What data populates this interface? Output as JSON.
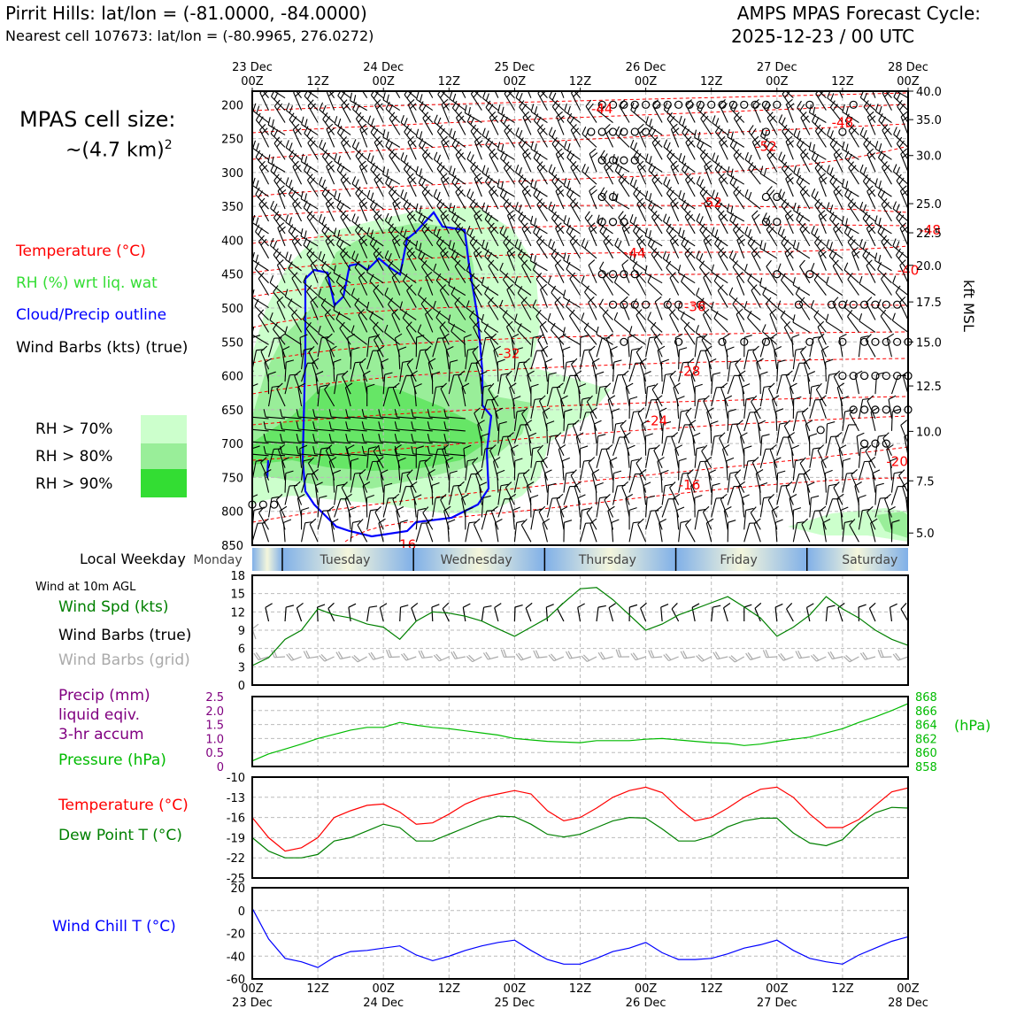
{
  "header": {
    "site_line": "Pirrit Hills: lat/lon = (-81.0000, -84.0000)",
    "cell_line": "Nearest cell 107673: lat/lon = (-80.9965, 276.0272)",
    "product_title": "AMPS MPAS Forecast Cycle:",
    "cycle": "2025-12-23 / 00 UTC"
  },
  "cell_size": {
    "label": "MPAS cell size:",
    "value": "~(4.7 km)",
    "exponent": "2"
  },
  "legend": {
    "temperature": "Temperature (°C)",
    "rh": "RH (%) wrt liq. wat",
    "cloud": "Cloud/Precip outline",
    "barbs": "Wind Barbs (kts) (true)",
    "rh_levels": [
      "RH > 70%",
      "RH > 80%",
      "RH > 90%"
    ]
  },
  "colors": {
    "temperature": "#ff0000",
    "rh_label": "#33dd33",
    "cloud": "#0000ff",
    "rh70": "#ccffcc",
    "rh80": "#99ee99",
    "rh90": "#33dd33",
    "wind_speed": "#008000",
    "precip": "#800080",
    "pressure": "#00bb00",
    "dewpoint": "#008000",
    "windchill": "#0000ff",
    "grid_barb": "#aaaaaa"
  },
  "time_axis": {
    "top_labels": [
      {
        "h": 0,
        "l1": "23 Dec",
        "l2": "00Z"
      },
      {
        "h": 12,
        "l1": "",
        "l2": "12Z"
      },
      {
        "h": 24,
        "l1": "24 Dec",
        "l2": "00Z"
      },
      {
        "h": 36,
        "l1": "",
        "l2": "12Z"
      },
      {
        "h": 48,
        "l1": "25 Dec",
        "l2": "00Z"
      },
      {
        "h": 60,
        "l1": "",
        "l2": "12Z"
      },
      {
        "h": 72,
        "l1": "26 Dec",
        "l2": "00Z"
      },
      {
        "h": 84,
        "l1": "",
        "l2": "12Z"
      },
      {
        "h": 96,
        "l1": "27 Dec",
        "l2": "00Z"
      },
      {
        "h": 108,
        "l1": "",
        "l2": "12Z"
      },
      {
        "h": 120,
        "l1": "28 Dec",
        "l2": "00Z"
      }
    ],
    "bottom_labels": [
      {
        "h": 0,
        "l1": "00Z",
        "l2": "23 Dec"
      },
      {
        "h": 12,
        "l1": "12Z",
        "l2": ""
      },
      {
        "h": 24,
        "l1": "00Z",
        "l2": "24 Dec"
      },
      {
        "h": 36,
        "l1": "12Z",
        "l2": ""
      },
      {
        "h": 48,
        "l1": "00Z",
        "l2": "25 Dec"
      },
      {
        "h": 60,
        "l1": "12Z",
        "l2": ""
      },
      {
        "h": 72,
        "l1": "00Z",
        "l2": "26 Dec"
      },
      {
        "h": 84,
        "l1": "12Z",
        "l2": ""
      },
      {
        "h": 96,
        "l1": "00Z",
        "l2": "27 Dec"
      },
      {
        "h": 108,
        "l1": "12Z",
        "l2": ""
      },
      {
        "h": 120,
        "l1": "00Z",
        "l2": "28 Dec"
      }
    ]
  },
  "weekday": {
    "label": "Local Weekday",
    "days": [
      {
        "name": "Monday",
        "center_h": 0
      },
      {
        "name": "Tuesday",
        "center_h": 17
      },
      {
        "name": "Wednesday",
        "center_h": 41
      },
      {
        "name": "Thursday",
        "center_h": 65
      },
      {
        "name": "Friday",
        "center_h": 89
      },
      {
        "name": "Saturday",
        "center_h": 113
      }
    ],
    "boundaries_h": [
      5.5,
      29.5,
      53.5,
      77.5,
      101.5
    ]
  },
  "chart_data": [
    {
      "type": "time-height cross section",
      "name": "profile",
      "y_axis": "pressure (hPa)",
      "ylim": [
        850,
        180
      ],
      "pressure_ticks": [
        "200",
        "250",
        "300",
        "350",
        "400",
        "450",
        "500",
        "550",
        "600",
        "650",
        "700",
        "750",
        "800",
        "850"
      ],
      "height_ticks": [
        {
          "p": 180,
          "label": "40.0"
        },
        {
          "p": 222,
          "label": "35.0"
        },
        {
          "p": 275,
          "label": "30.0"
        },
        {
          "p": 346,
          "label": "25.0"
        },
        {
          "p": 389,
          "label": "22.5"
        },
        {
          "p": 437,
          "label": "20.0"
        },
        {
          "p": 491,
          "label": "17.5"
        },
        {
          "p": 550,
          "label": "15.0"
        },
        {
          "p": 615,
          "label": "12.5"
        },
        {
          "p": 682,
          "label": "10.0"
        },
        {
          "p": 755,
          "label": "7.5"
        },
        {
          "p": 832,
          "label": "5.0"
        }
      ],
      "right_axis_label": "kft MSL",
      "temp_contour_labels": [
        {
          "h": 64,
          "p": 205,
          "label": "-44"
        },
        {
          "h": 108,
          "p": 225,
          "label": "-48"
        },
        {
          "h": 94,
          "p": 260,
          "label": "-52"
        },
        {
          "h": 84,
          "p": 343,
          "label": "-52"
        },
        {
          "h": 124,
          "p": 384,
          "label": "-48"
        },
        {
          "h": 70,
          "p": 418,
          "label": "-44"
        },
        {
          "h": 120,
          "p": 443,
          "label": "-40"
        },
        {
          "h": 81,
          "p": 497,
          "label": "-36"
        },
        {
          "h": 47,
          "p": 566,
          "label": "-32"
        },
        {
          "h": 80,
          "p": 592,
          "label": "-28"
        },
        {
          "h": 74,
          "p": 665,
          "label": "-24"
        },
        {
          "h": 118,
          "p": 725,
          "label": "-20"
        },
        {
          "h": 80,
          "p": 760,
          "label": "-16"
        },
        {
          "h": 28,
          "p": 848,
          "label": "-16"
        }
      ]
    },
    {
      "type": "line",
      "name": "wind_speed",
      "title": "Wind Spd (kts)",
      "ylim": [
        0,
        18
      ],
      "yticks": [
        "0",
        "3",
        "6",
        "9",
        "12",
        "15",
        "18"
      ],
      "x_hours": [
        0,
        3,
        6,
        9,
        12,
        15,
        18,
        21,
        24,
        27,
        30,
        33,
        36,
        39,
        42,
        45,
        48,
        51,
        54,
        57,
        60,
        63,
        66,
        69,
        72,
        75,
        78,
        81,
        84,
        87,
        90,
        93,
        96,
        99,
        102,
        105,
        108,
        111,
        114,
        117,
        120
      ],
      "series": [
        {
          "name": "Wind Spd (kts)",
          "values": [
            3.2,
            4.5,
            7.5,
            9,
            12.5,
            11.5,
            11,
            10,
            9.5,
            7.5,
            10.5,
            12,
            11.8,
            11.3,
            10.5,
            9.2,
            8,
            9.5,
            11,
            13.5,
            15.8,
            16,
            14,
            11.5,
            9,
            10,
            11.5,
            12.5,
            13.5,
            14.5,
            12.8,
            11,
            8,
            9.5,
            11.5,
            14.5,
            12.5,
            11,
            9,
            7.5,
            6.5
          ]
        }
      ]
    },
    {
      "type": "line",
      "name": "pressure",
      "title": "Pressure (hPa)",
      "ylim": [
        858,
        868
      ],
      "yticks": [
        "858",
        "860",
        "862",
        "864",
        "866",
        "868"
      ],
      "precip_title": "Precip (mm) liquid eqiv. 3-hr accum",
      "precip_ylim": [
        0,
        2.5
      ],
      "precip_yticks": [
        "0",
        "0.5",
        "1.0",
        "1.5",
        "2.0",
        "2.5"
      ],
      "unit_label": "(hPa)",
      "x_hours": [
        0,
        3,
        6,
        9,
        12,
        15,
        18,
        21,
        24,
        27,
        30,
        33,
        36,
        39,
        42,
        45,
        48,
        51,
        54,
        57,
        60,
        63,
        66,
        69,
        72,
        75,
        78,
        81,
        84,
        87,
        90,
        93,
        96,
        99,
        102,
        105,
        108,
        111,
        114,
        117,
        120
      ],
      "series": [
        {
          "name": "Pressure (hPa)",
          "values": [
            858.8,
            859.8,
            860.5,
            861.2,
            862.0,
            862.6,
            863.2,
            863.6,
            863.6,
            864.3,
            863.9,
            863.6,
            863.4,
            863.1,
            862.8,
            862.5,
            862.0,
            861.8,
            861.6,
            861.5,
            861.4,
            861.7,
            861.7,
            861.7,
            861.9,
            862.0,
            861.8,
            861.6,
            861.4,
            861.3,
            861.0,
            861.2,
            861.6,
            861.9,
            862.2,
            862.8,
            863.4,
            864.3,
            865.1,
            866.0,
            867.0
          ]
        }
      ]
    },
    {
      "type": "line",
      "name": "temperature",
      "ylim": [
        -25,
        -10
      ],
      "yticks": [
        "-25",
        "-22",
        "-19",
        "-16",
        "-13",
        "-10"
      ],
      "x_hours": [
        0,
        3,
        6,
        9,
        12,
        15,
        18,
        21,
        24,
        27,
        30,
        33,
        36,
        39,
        42,
        45,
        48,
        51,
        54,
        57,
        60,
        63,
        66,
        69,
        72,
        75,
        78,
        81,
        84,
        87,
        90,
        93,
        96,
        99,
        102,
        105,
        108,
        111,
        114,
        117,
        120
      ],
      "series": [
        {
          "name": "Temperature (°C)",
          "values": [
            -16,
            -19,
            -21,
            -20.5,
            -19,
            -16,
            -15,
            -14.2,
            -14,
            -15.2,
            -17,
            -16.8,
            -15.5,
            -14,
            -13,
            -12.5,
            -12,
            -12.5,
            -15,
            -16.5,
            -16,
            -14.6,
            -13,
            -12,
            -11.5,
            -12.3,
            -14.6,
            -16.5,
            -16,
            -14.6,
            -13,
            -11.8,
            -11.5,
            -13,
            -15.5,
            -17.5,
            -17.5,
            -16.3,
            -14.2,
            -12.2,
            -11.6
          ]
        },
        {
          "name": "Dew Point T (°C)",
          "values": [
            -19,
            -21,
            -22,
            -22,
            -21.5,
            -19.5,
            -19,
            -18,
            -17,
            -17.5,
            -19.5,
            -19.5,
            -18.5,
            -17.5,
            -16.5,
            -15.8,
            -15.9,
            -17,
            -18.5,
            -18.9,
            -18.5,
            -17.5,
            -16.5,
            -16,
            -16.1,
            -17.7,
            -19.5,
            -19.5,
            -18.8,
            -17.4,
            -16.5,
            -16.1,
            -16.1,
            -18.3,
            -19.8,
            -20.2,
            -19.3,
            -16.9,
            -15.3,
            -14.5,
            -14.6
          ]
        }
      ]
    },
    {
      "type": "line",
      "name": "wind_chill",
      "title": "Wind Chill T (°C)",
      "ylim": [
        -60,
        20
      ],
      "yticks": [
        "-60",
        "-40",
        "-20",
        "0",
        "20"
      ],
      "x_hours": [
        0,
        3,
        6,
        9,
        12,
        15,
        18,
        21,
        24,
        27,
        30,
        33,
        36,
        39,
        42,
        45,
        48,
        51,
        54,
        57,
        60,
        63,
        66,
        69,
        72,
        75,
        78,
        81,
        84,
        87,
        90,
        93,
        96,
        99,
        102,
        105,
        108,
        111,
        114,
        117,
        120
      ],
      "series": [
        {
          "name": "Wind Chill T (°C)",
          "values": [
            2,
            -25,
            -42,
            -45,
            -50,
            -41,
            -36,
            -35,
            -33,
            -31,
            -39,
            -44,
            -40,
            -35,
            -31,
            -28,
            -26,
            -35,
            -43,
            -47,
            -47,
            -42,
            -36,
            -33,
            -28,
            -37,
            -43,
            -43,
            -42,
            -38,
            -33,
            -30,
            -26,
            -35,
            -42,
            -45,
            -47,
            -39,
            -33,
            -27,
            -23
          ]
        }
      ]
    }
  ],
  "lower_legend": {
    "wind_at_10m": "Wind at 10m AGL",
    "wind_spd": "Wind Spd (kts)",
    "barbs_true": "Wind Barbs (true)",
    "barbs_grid": "Wind Barbs (grid)",
    "precip_l1": "Precip (mm)",
    "precip_l2": "liquid eqiv.",
    "precip_l3": "3-hr accum",
    "pressure": "Pressure (hPa)",
    "temperature": "Temperature (°C)",
    "dewpoint": "Dew Point T (°C)",
    "windchill": "Wind Chill T (°C)"
  }
}
